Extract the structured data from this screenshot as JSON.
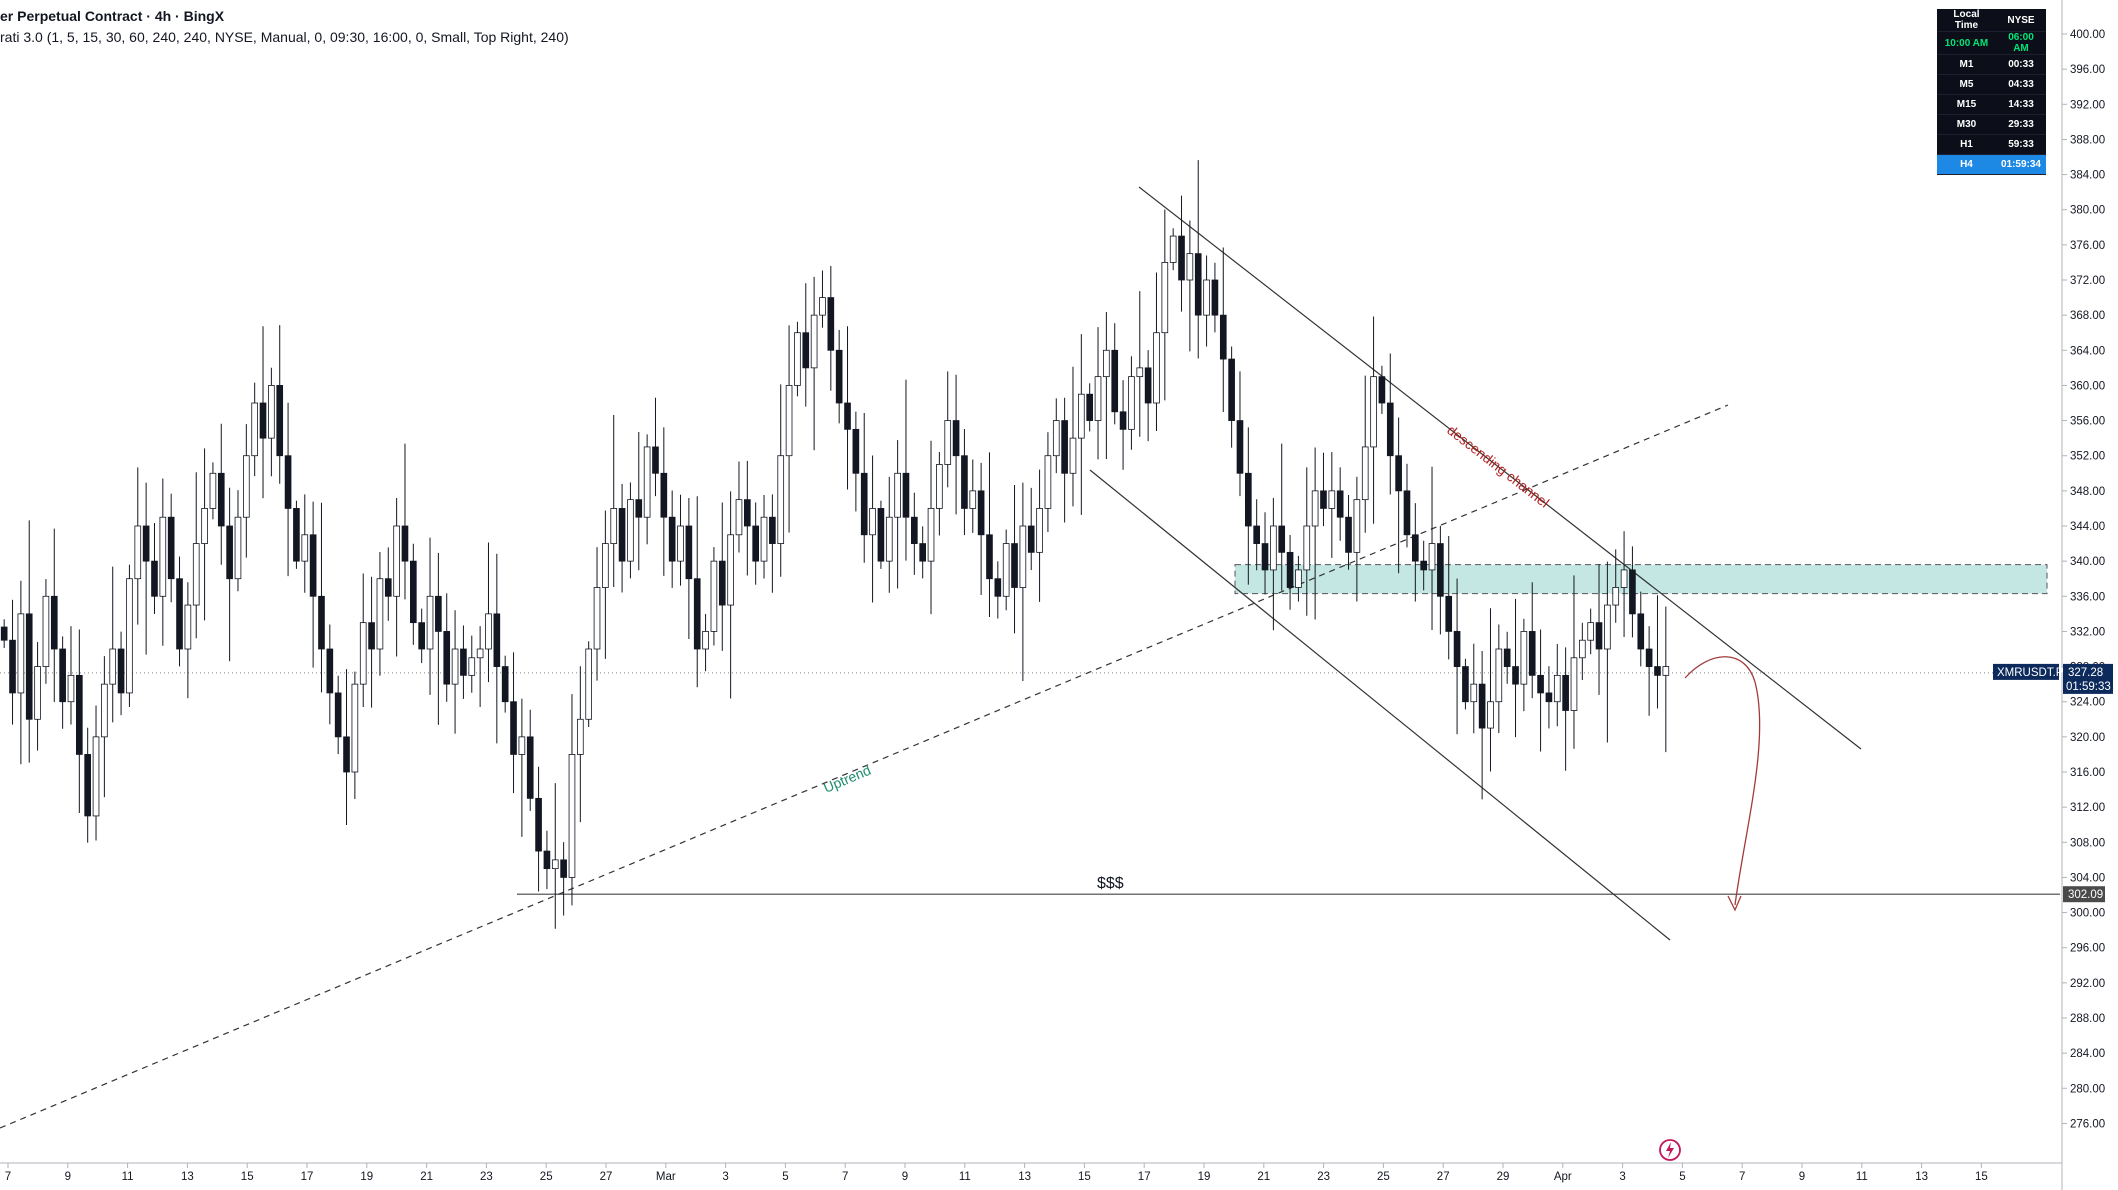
{
  "header": {
    "line1": "er Perpetual Contract · 4h · BingX",
    "line2": "rati 3.0 (1, 5, 15, 30, 60, 240, 240, NYSE, Manual, 0, 09:30, 16:00, 0, Small, Top Right, 240)"
  },
  "session_table": {
    "headers": [
      "Local Time",
      "NYSE"
    ],
    "time_row": [
      "10:00 AM",
      "06:00 AM"
    ],
    "rows": [
      {
        "tf": "M1",
        "countdown": "00:33"
      },
      {
        "tf": "M5",
        "countdown": "04:33"
      },
      {
        "tf": "M15",
        "countdown": "14:33"
      },
      {
        "tf": "M30",
        "countdown": "29:33"
      },
      {
        "tf": "H1",
        "countdown": "59:33"
      },
      {
        "tf": "H4",
        "countdown": "01:59:34"
      }
    ],
    "colors": {
      "bg": "#0c0f1a",
      "header_text": "#ffffff",
      "time_text": "#00e676",
      "active_bg": "#1e88e5"
    }
  },
  "price_label": {
    "symbol": "XMRUSDT.P",
    "price": "327.28",
    "countdown": "01:59:33",
    "color": "#0d2a5c"
  },
  "level_label": {
    "price": "302.09",
    "color": "#4a4a4a"
  },
  "annotations": {
    "uptrend": "Uptrend",
    "channel": "descending channel",
    "liquidity": "$$$",
    "uptrend_color": "#1e8e6e",
    "channel_color": "#b22222",
    "arrow_color": "#a33a3a",
    "zone_color": "#b2dfdb"
  },
  "icons": {
    "bolt": "lightning-bolt-icon"
  },
  "chart_data": {
    "type": "candlestick",
    "symbol": "XMRUSDT.P",
    "timeframe": "4h",
    "ylim": [
      274,
      402
    ],
    "y_ticks": [
      276,
      280,
      284,
      288,
      292,
      296,
      300,
      304,
      308,
      312,
      316,
      320,
      324,
      328,
      332,
      336,
      340,
      344,
      348,
      352,
      356,
      360,
      364,
      368,
      372,
      376,
      380,
      384,
      388,
      392,
      396,
      400
    ],
    "x_ticks": [
      "7",
      "9",
      "11",
      "13",
      "15",
      "17",
      "19",
      "21",
      "23",
      "25",
      "27",
      "Mar",
      "3",
      "5",
      "7",
      "9",
      "11",
      "13",
      "15",
      "17",
      "19",
      "21",
      "23",
      "25",
      "27",
      "29",
      "Apr",
      "3",
      "5",
      "7",
      "9",
      "11",
      "13",
      "15"
    ],
    "x_axis_note": "Feb 7 to Apr 15, 6 candles per day, 2-day tick spacing",
    "closes": [
      331,
      325,
      334,
      322,
      328,
      336,
      330,
      324,
      327,
      318,
      311,
      320,
      326,
      330,
      325,
      338,
      344,
      340,
      336,
      345,
      338,
      330,
      335,
      342,
      346,
      350,
      344,
      338,
      345,
      352,
      358,
      354,
      360,
      352,
      346,
      340,
      343,
      336,
      330,
      325,
      320,
      316,
      326,
      333,
      330,
      338,
      336,
      344,
      340,
      333,
      330,
      336,
      332,
      326,
      330,
      327,
      329,
      330,
      334,
      328,
      324,
      318,
      320,
      313,
      307,
      305,
      306,
      304,
      318,
      322,
      330,
      337,
      342,
      346,
      340,
      347,
      345,
      353,
      350,
      345,
      340,
      344,
      338,
      330,
      332,
      340,
      335,
      343,
      347,
      344,
      340,
      345,
      342,
      352,
      360,
      366,
      362,
      368,
      370,
      364,
      358,
      355,
      350,
      343,
      346,
      340,
      345,
      350,
      345,
      342,
      340,
      346,
      351,
      356,
      352,
      346,
      348,
      343,
      338,
      336,
      342,
      337,
      344,
      341,
      346,
      352,
      356,
      350,
      354,
      359,
      356,
      361,
      364,
      357,
      355,
      361,
      362,
      358,
      366,
      374,
      377,
      372,
      375,
      368,
      372,
      368,
      363,
      356,
      350,
      344,
      342,
      339,
      344,
      341,
      337,
      339,
      344,
      348,
      346,
      348,
      345,
      341,
      347,
      353,
      361,
      358,
      352,
      348,
      343,
      340,
      339,
      342,
      336,
      332,
      328,
      324,
      326,
      321,
      324,
      330,
      328,
      326,
      332,
      327,
      325,
      324,
      327,
      323,
      329,
      331,
      333,
      330,
      335,
      337,
      339,
      334,
      330,
      328,
      327,
      328
    ],
    "annotations": {
      "horizontal_level": 302.09,
      "zone": [
        336.3,
        339.6
      ],
      "current_price": 327.28
    }
  }
}
